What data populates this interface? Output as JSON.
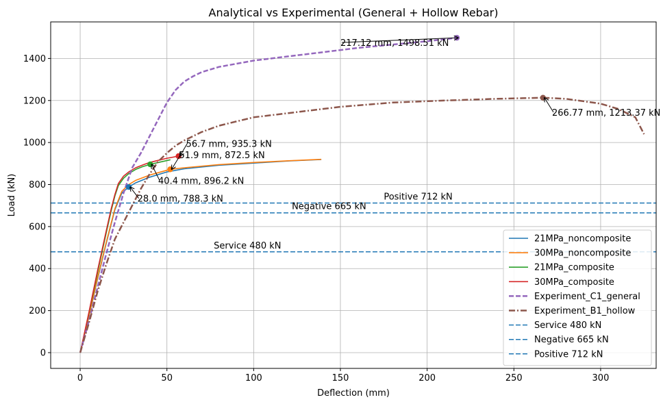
{
  "chart_data": {
    "type": "line",
    "title": "Analytical vs Experimental (General + Hollow Rebar)",
    "xlabel": "Deflection (mm)",
    "ylabel": "Load (kN)",
    "xlim": [
      -17,
      332
    ],
    "ylim": [
      -75,
      1574
    ],
    "xticks": [
      0,
      50,
      100,
      150,
      200,
      250,
      300
    ],
    "yticks": [
      0,
      200,
      400,
      600,
      800,
      1000,
      1200,
      1400
    ],
    "grid": true,
    "legend_position": "lower-right",
    "series": [
      {
        "name": "21MPa_noncomposite",
        "color": "#1f77b4",
        "style": "solid",
        "x": [
          0,
          5,
          10,
          15,
          20,
          24,
          28,
          32,
          40,
          50,
          60,
          80,
          100,
          120,
          139
        ],
        "y": [
          0,
          170,
          350,
          520,
          680,
          760,
          788.3,
          808,
          835,
          860,
          875,
          892,
          902,
          912,
          919
        ]
      },
      {
        "name": "30MPa_noncomposite",
        "color": "#ff7f0e",
        "style": "solid",
        "x": [
          0,
          5,
          10,
          15,
          20,
          24,
          28,
          32,
          40,
          51.9,
          60,
          80,
          100,
          120,
          139
        ],
        "y": [
          0,
          172,
          355,
          525,
          685,
          768,
          800,
          820,
          845,
          872.5,
          880,
          895,
          905,
          913,
          920
        ]
      },
      {
        "name": "21MPa_composite",
        "color": "#2ca02c",
        "style": "solid",
        "x": [
          0,
          5,
          10,
          15,
          18,
          20,
          22,
          25,
          28,
          32,
          36,
          40.4,
          45,
          52
        ],
        "y": [
          0,
          185,
          380,
          570,
          680,
          745,
          795,
          830,
          852,
          872,
          885,
          896.2,
          905,
          918
        ]
      },
      {
        "name": "30MPa_composite",
        "color": "#d62728",
        "style": "solid",
        "x": [
          0,
          5,
          10,
          15,
          18,
          20,
          22,
          25,
          28,
          32,
          36,
          40,
          45,
          50,
          56.7
        ],
        "y": [
          0,
          190,
          390,
          580,
          690,
          752,
          805,
          840,
          860,
          880,
          893,
          905,
          915,
          925,
          935.3
        ]
      },
      {
        "name": "Experiment_C1_general",
        "color": "#9467bd",
        "style": "dashed",
        "x": [
          0,
          5,
          10,
          15,
          20,
          25,
          30,
          35,
          40,
          45,
          50,
          55,
          60,
          65,
          70,
          80,
          90,
          100,
          120,
          140,
          160,
          180,
          200,
          217.12
        ],
        "y": [
          0,
          150,
          310,
          470,
          620,
          760,
          880,
          950,
          1030,
          1110,
          1190,
          1250,
          1290,
          1315,
          1335,
          1360,
          1375,
          1390,
          1410,
          1430,
          1450,
          1466,
          1482,
          1498.51
        ]
      },
      {
        "name": "Experiment_B1_hollow",
        "color": "#8c564b",
        "style": "dashdot",
        "x": [
          0,
          5,
          10,
          15,
          20,
          25,
          30,
          35,
          40,
          45,
          50,
          55,
          60,
          70,
          80,
          90,
          100,
          120,
          150,
          180,
          210,
          240,
          266.77,
          280,
          300,
          310,
          320,
          325
        ],
        "y": [
          0,
          140,
          290,
          420,
          540,
          620,
          700,
          780,
          850,
          910,
          950,
          985,
          1010,
          1050,
          1080,
          1100,
          1120,
          1140,
          1170,
          1190,
          1200,
          1208,
          1213.37,
          1208,
          1185,
          1160,
          1120,
          1040
        ]
      }
    ],
    "hlines": [
      {
        "name": "Service 480 kN",
        "y": 480,
        "color": "#1f77b4",
        "style": "dashed"
      },
      {
        "name": "Negative 665 kN",
        "y": 665,
        "color": "#1f77b4",
        "style": "dashed"
      },
      {
        "name": "Positive 712 kN",
        "y": 712,
        "color": "#1f77b4",
        "style": "dashed"
      }
    ],
    "hline_labels": [
      {
        "text": "Service 480 kN",
        "x": 77,
        "y": 495
      },
      {
        "text": "Negative 665 kN",
        "x": 122,
        "y": 682
      },
      {
        "text": "Positive 712 kN",
        "x": 175,
        "y": 728
      }
    ],
    "markers": [
      {
        "x": 28.0,
        "y": 788.3,
        "color": "#1f77b4",
        "label": "28.0 mm, 788.3 kN",
        "tx": 33,
        "ty": 718
      },
      {
        "x": 51.9,
        "y": 872.5,
        "color": "#ff7f0e",
        "label": "51.9 mm, 872.5 kN",
        "tx": 57,
        "ty": 925
      },
      {
        "x": 40.4,
        "y": 896.2,
        "color": "#2ca02c",
        "label": "40.4 mm, 896.2 kN",
        "tx": 45,
        "ty": 803
      },
      {
        "x": 56.7,
        "y": 935.3,
        "color": "#d62728",
        "label": "56.7 mm, 935.3 kN",
        "tx": 61,
        "ty": 980
      },
      {
        "x": 217.12,
        "y": 1498.51,
        "color": "#9467bd",
        "label": "217.12 mm, 1498.51 kN",
        "tx": 150,
        "ty": 1460
      },
      {
        "x": 266.77,
        "y": 1213.37,
        "color": "#8c564b",
        "label": "266.77 mm, 1213.37 kN",
        "tx": 272,
        "ty": 1128
      }
    ]
  }
}
